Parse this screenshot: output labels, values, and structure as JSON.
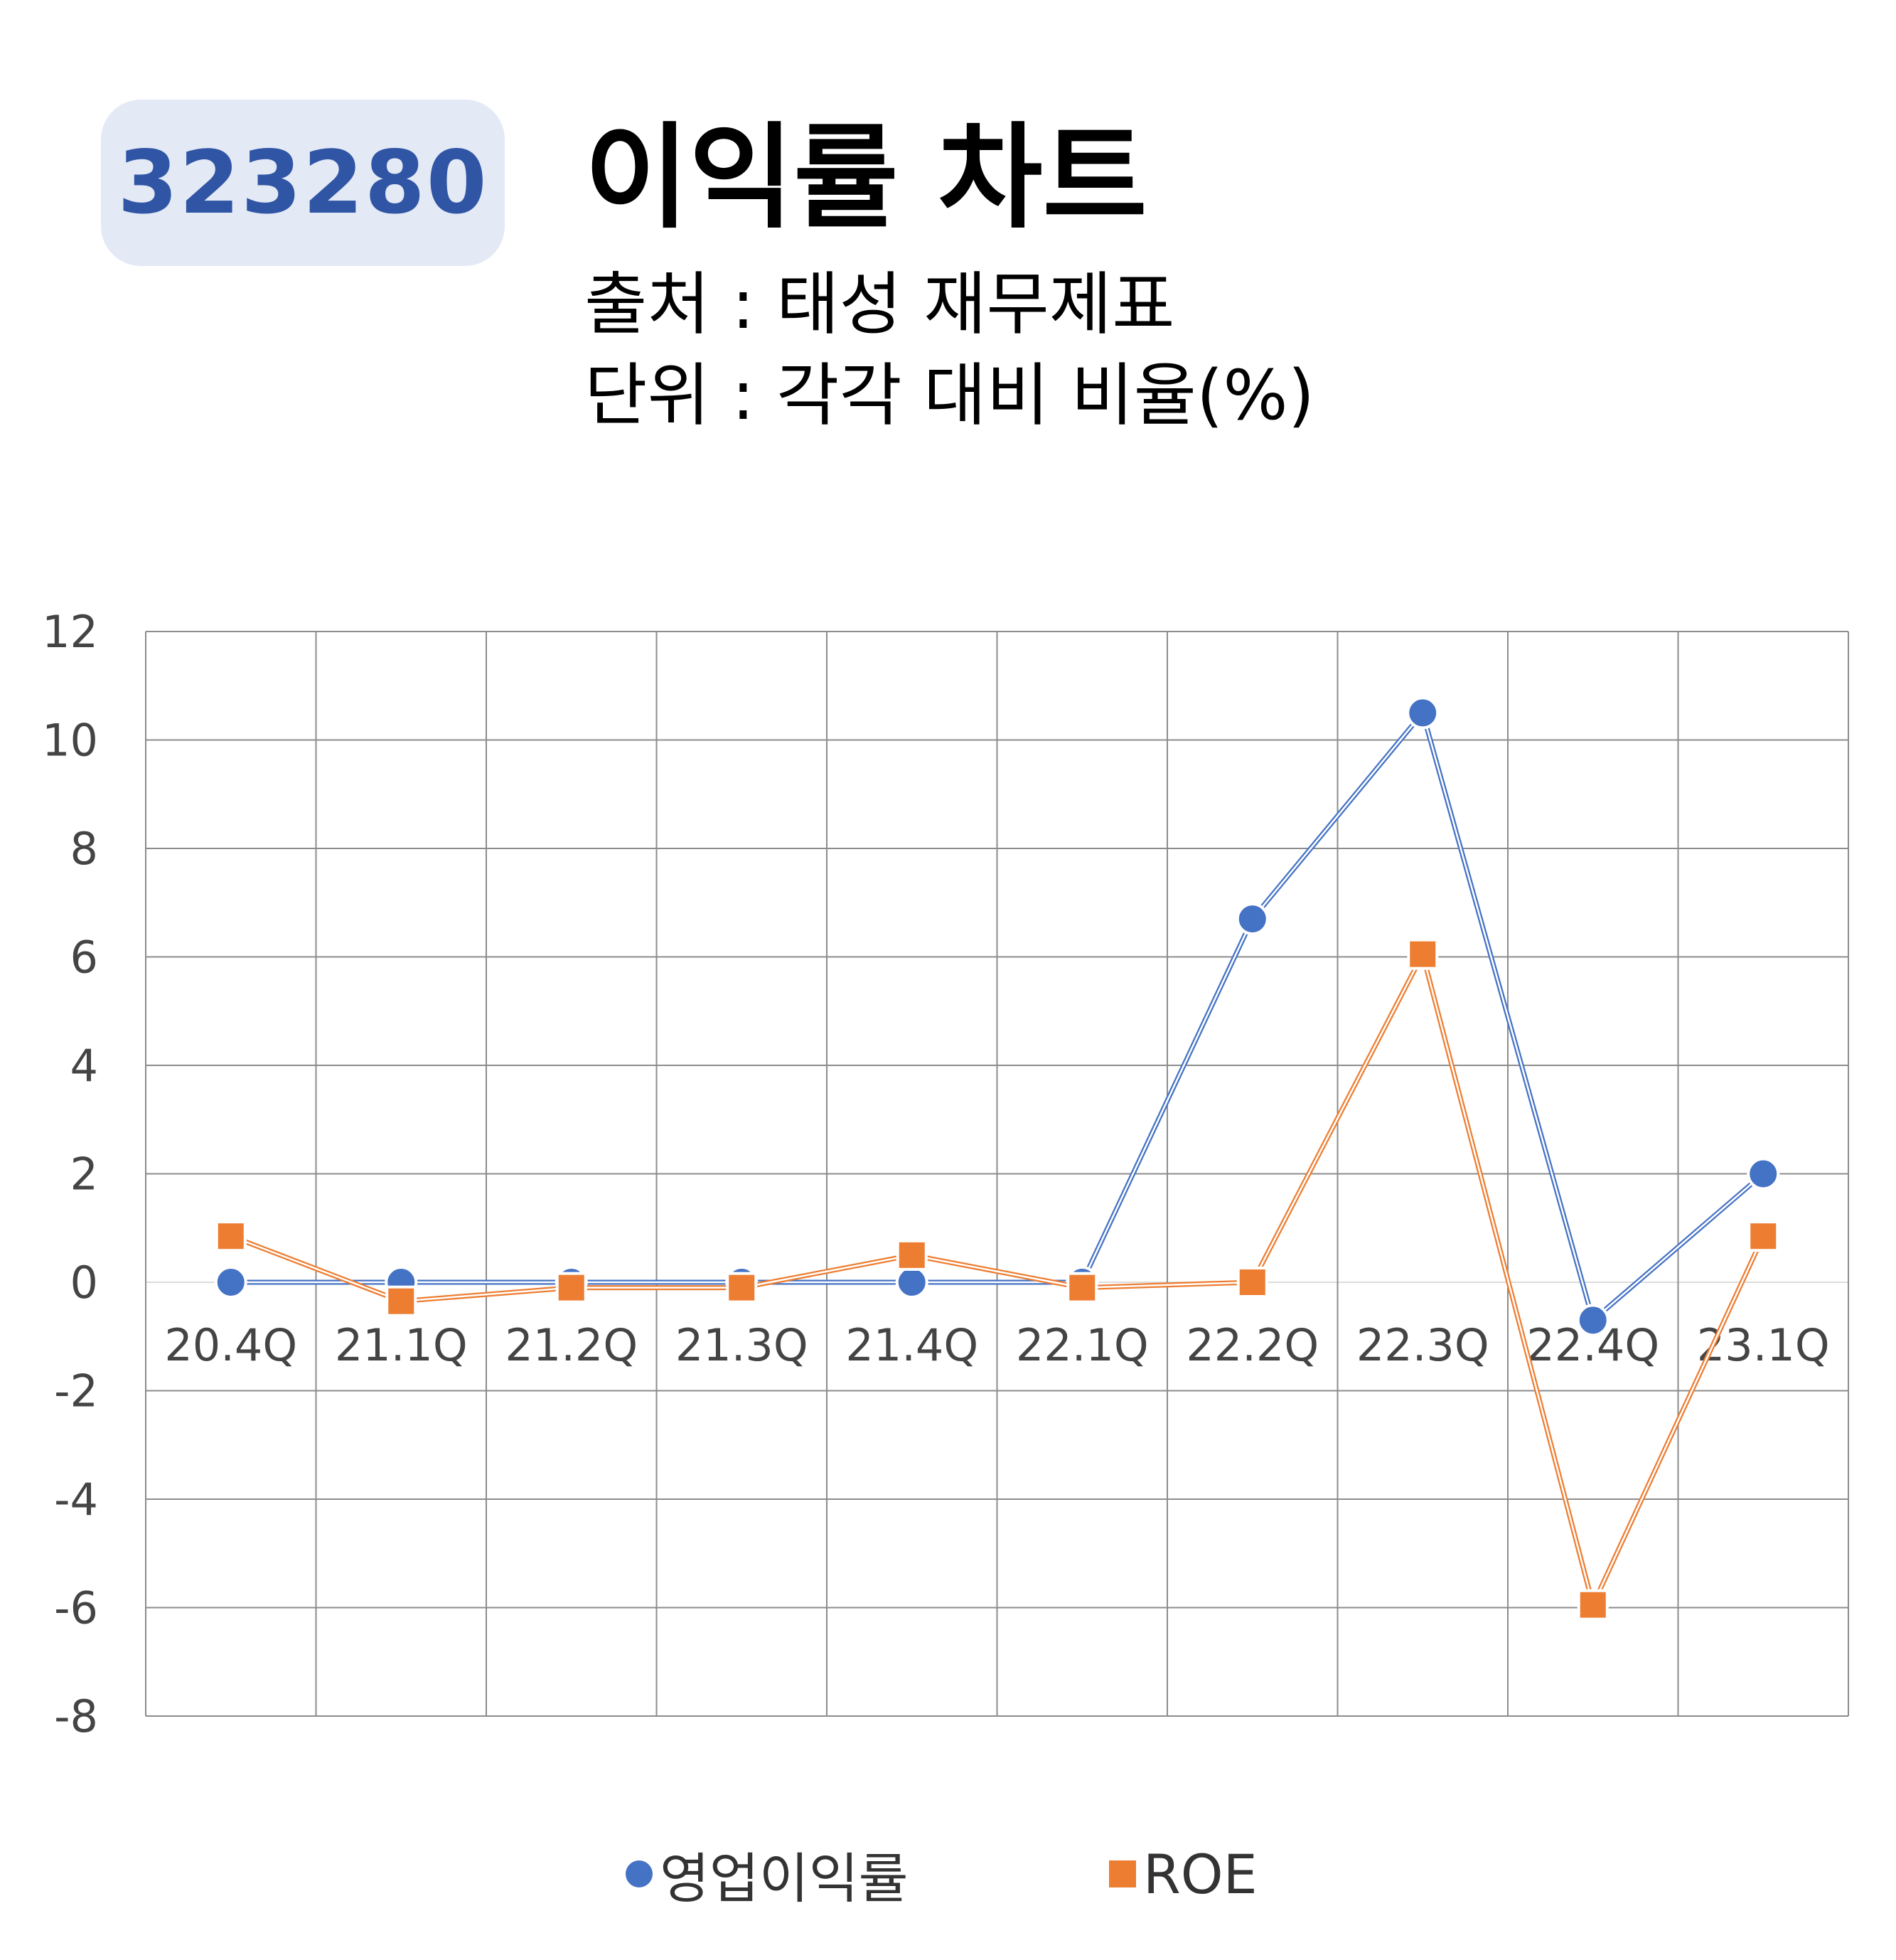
{
  "header": {
    "code": "323280",
    "title": "이익률 차트",
    "source": "출처 : 태성 재무제표",
    "unit": "단위 : 각각 대비 비율(%)"
  },
  "chart_data": {
    "type": "line",
    "categories": [
      "20.4Q",
      "21.1Q",
      "21.2Q",
      "21.3Q",
      "21.4Q",
      "22.1Q",
      "22.2Q",
      "22.3Q",
      "22.4Q",
      "23.1Q"
    ],
    "series": [
      {
        "name": "영업이익률",
        "values": [
          0,
          0,
          0,
          0,
          0,
          0,
          6.7,
          10.5,
          -0.7,
          2.0
        ],
        "color": "#4472c4",
        "marker": "circle"
      },
      {
        "name": "ROE",
        "values": [
          0.85,
          -0.35,
          -0.1,
          -0.1,
          0.5,
          -0.1,
          0,
          6.05,
          -5.95,
          0.85
        ],
        "color": "#ed7d31",
        "marker": "square"
      }
    ],
    "ylim": [
      -8,
      12
    ],
    "yticks": [
      12,
      10,
      8,
      6,
      4,
      2,
      0,
      -2,
      -4,
      -6,
      -8
    ],
    "grid": true,
    "legend": "bottom"
  }
}
